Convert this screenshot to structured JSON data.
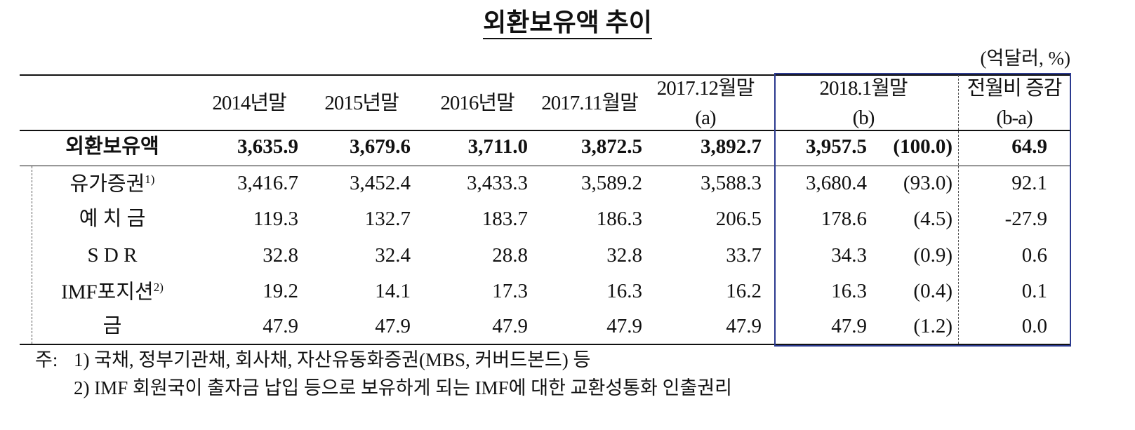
{
  "title": "외환보유액 추이",
  "unit": "(억달러, %)",
  "table": {
    "header": [
      [
        "2014년말"
      ],
      [
        "2015년말"
      ],
      [
        "2016년말"
      ],
      [
        "2017.11월말"
      ],
      [
        "2017.12월말",
        "(a)"
      ],
      [
        "2018.1월말",
        "(b)"
      ],
      [
        "전월비 증감",
        "(b-a)"
      ]
    ],
    "rows": [
      {
        "label": "외환보유액",
        "cells": [
          "3,635.9",
          "3,679.6",
          "3,711.0",
          "3,872.5",
          "3,892.7",
          "3,957.5",
          "(100.0)",
          "64.9"
        ]
      },
      {
        "label": "유가증권",
        "note": "1)",
        "cells": [
          "3,416.7",
          "3,452.4",
          "3,433.3",
          "3,589.2",
          "3,588.3",
          "3,680.4",
          "(93.0)",
          "92.1"
        ]
      },
      {
        "label": "예 치 금",
        "cells": [
          "119.3",
          "132.7",
          "183.7",
          "186.3",
          "206.5",
          "178.6",
          "(4.5)",
          "-27.9"
        ]
      },
      {
        "label": "S D R",
        "cells": [
          "32.8",
          "32.4",
          "28.8",
          "32.8",
          "33.7",
          "34.3",
          "(0.9)",
          "0.6"
        ]
      },
      {
        "label": "IMF포지션",
        "note": "2)",
        "cells": [
          "19.2",
          "14.1",
          "17.3",
          "16.3",
          "16.2",
          "16.3",
          "(0.4)",
          "0.1"
        ]
      },
      {
        "label": "금",
        "cells": [
          "47.9",
          "47.9",
          "47.9",
          "47.9",
          "47.9",
          "47.9",
          "(1.2)",
          "0.0"
        ]
      }
    ]
  },
  "notes": {
    "prefix": "주:",
    "items": [
      "1) 국채, 정부기관채, 회사채, 자산유동화증권(MBS, 커버드본드) 등",
      "2) IMF 회원국이 출자금 납입 등으로 보유하게 되는 IMF에 대한 교환성통화 인출권리"
    ]
  }
}
